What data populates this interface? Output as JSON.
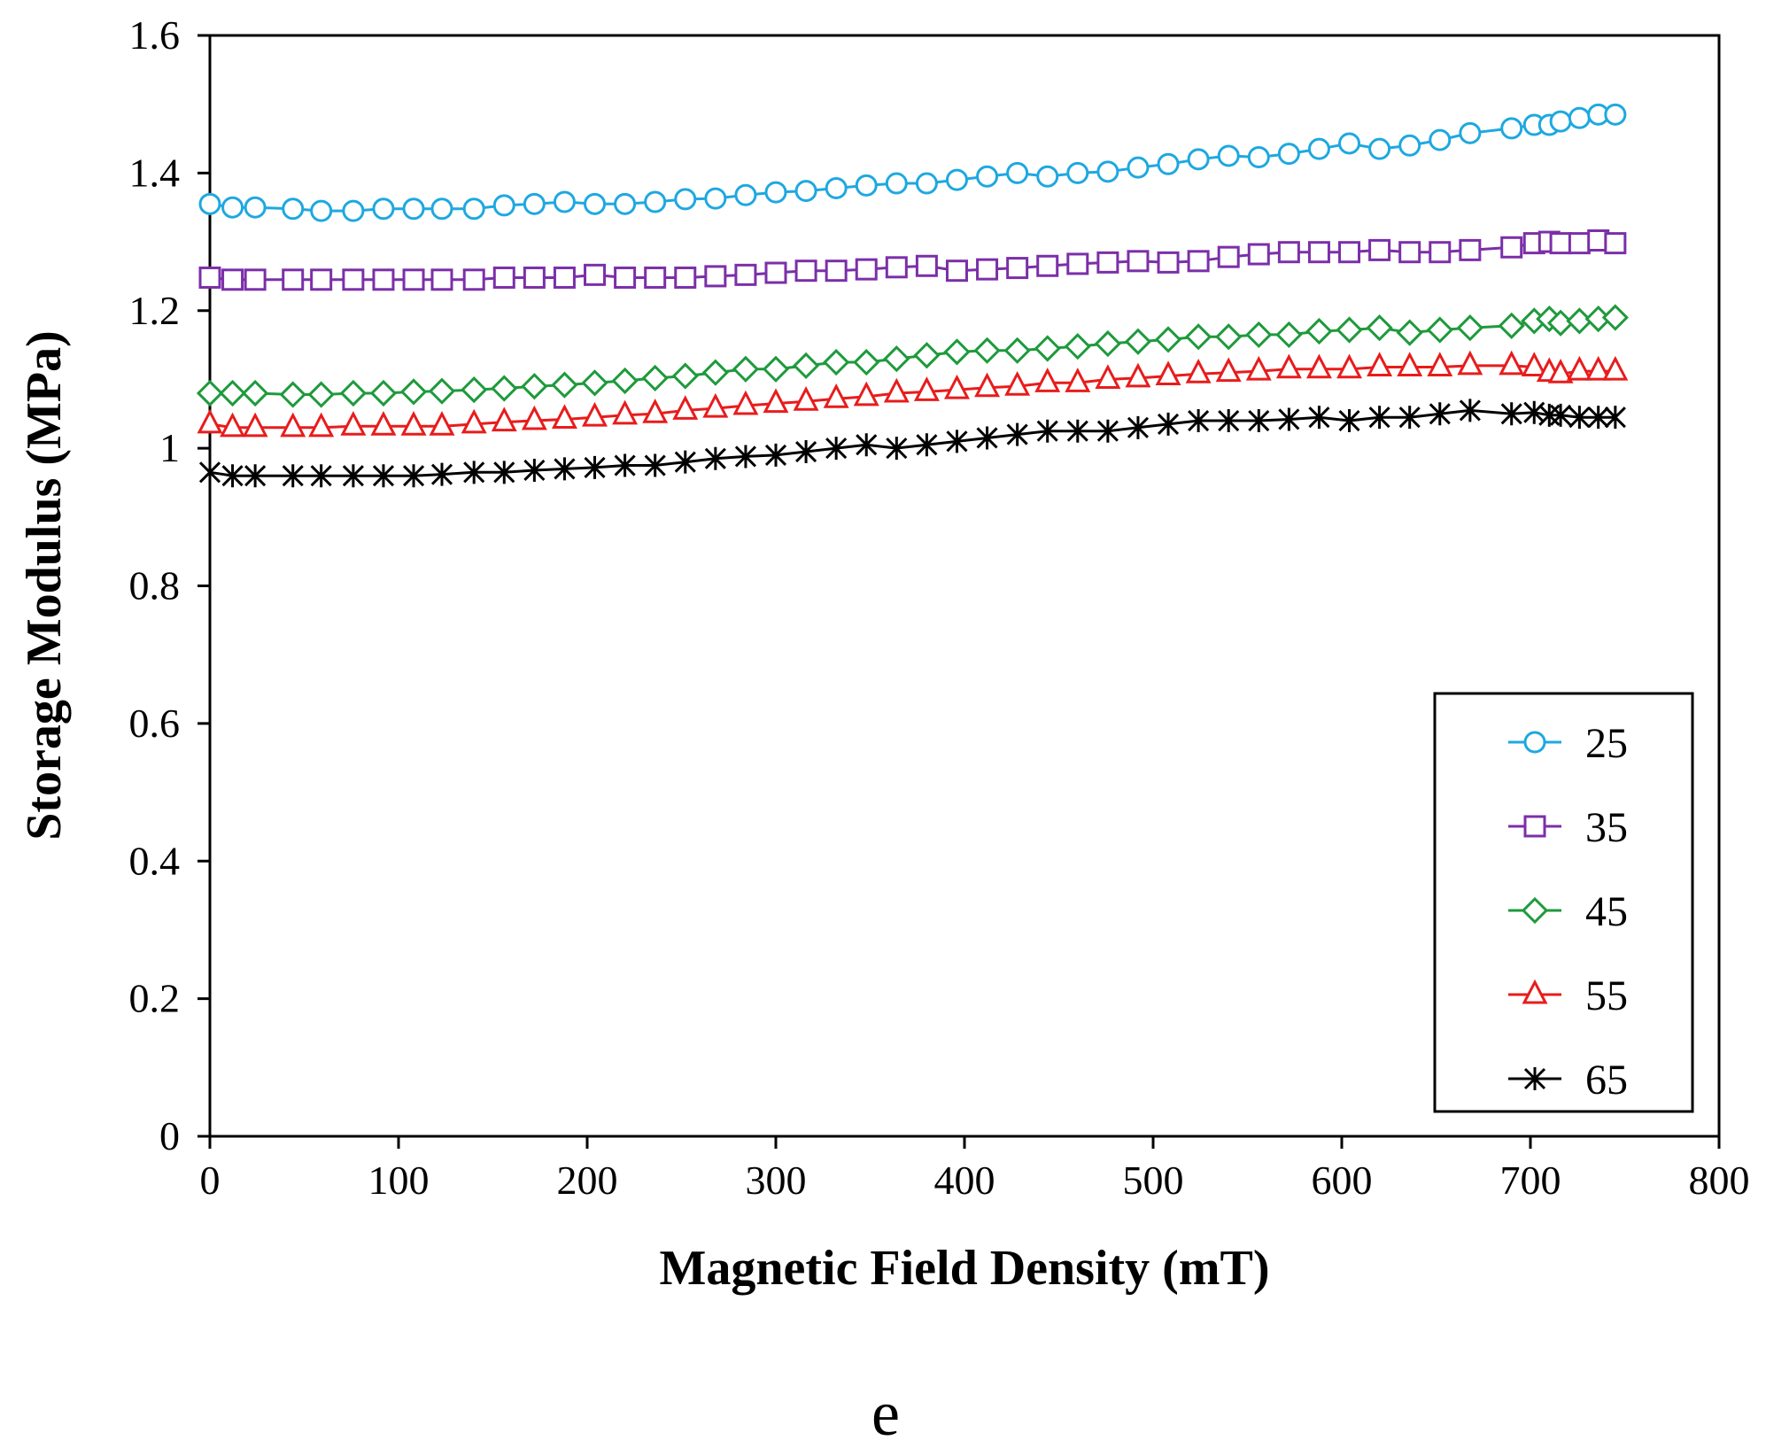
{
  "chart_data": {
    "type": "line",
    "title": "",
    "xlabel": "Magnetic Field Density (mT)",
    "ylabel": "Storage Modulus (MPa)",
    "xlim": [
      0,
      800
    ],
    "ylim": [
      0,
      1.6
    ],
    "xticks": [
      "0",
      "100",
      "200",
      "300",
      "400",
      "500",
      "600",
      "700",
      "800"
    ],
    "yticks": [
      "0",
      "0.2",
      "0.4",
      "0.6",
      "0.8",
      "1",
      "1.2",
      "1.4",
      "1.6"
    ],
    "grid": false,
    "legend_position": "bottom-right",
    "panel_label": "e",
    "x": [
      0,
      12,
      24,
      44,
      59,
      76,
      92,
      108,
      123,
      140,
      156,
      172,
      188,
      204,
      220,
      236,
      252,
      268,
      284,
      300,
      316,
      332,
      348,
      364,
      380,
      396,
      412,
      428,
      444,
      460,
      476,
      492,
      508,
      524,
      540,
      556,
      572,
      588,
      604,
      620,
      636,
      652,
      668,
      690,
      702,
      710,
      716,
      726,
      736,
      745
    ],
    "series": [
      {
        "name": "25",
        "color": "#1ea8e0",
        "marker": "circle",
        "values": [
          1.355,
          1.35,
          1.35,
          1.348,
          1.345,
          1.345,
          1.348,
          1.348,
          1.348,
          1.348,
          1.353,
          1.355,
          1.358,
          1.355,
          1.355,
          1.358,
          1.362,
          1.363,
          1.368,
          1.372,
          1.374,
          1.378,
          1.382,
          1.385,
          1.385,
          1.39,
          1.395,
          1.4,
          1.395,
          1.4,
          1.402,
          1.408,
          1.413,
          1.42,
          1.425,
          1.423,
          1.428,
          1.435,
          1.443,
          1.435,
          1.44,
          1.448,
          1.458,
          1.465,
          1.47,
          1.47,
          1.475,
          1.48,
          1.485,
          1.485
        ]
      },
      {
        "name": "35",
        "color": "#7b2fa8",
        "marker": "square",
        "values": [
          1.248,
          1.245,
          1.245,
          1.245,
          1.245,
          1.245,
          1.245,
          1.245,
          1.245,
          1.245,
          1.248,
          1.248,
          1.248,
          1.252,
          1.248,
          1.248,
          1.248,
          1.25,
          1.252,
          1.255,
          1.258,
          1.258,
          1.26,
          1.263,
          1.265,
          1.258,
          1.26,
          1.262,
          1.265,
          1.268,
          1.27,
          1.272,
          1.27,
          1.272,
          1.278,
          1.282,
          1.285,
          1.285,
          1.285,
          1.288,
          1.285,
          1.285,
          1.288,
          1.292,
          1.298,
          1.3,
          1.298,
          1.298,
          1.302,
          1.298
        ]
      },
      {
        "name": "45",
        "color": "#1e9a3c",
        "marker": "diamond",
        "values": [
          1.08,
          1.08,
          1.08,
          1.078,
          1.078,
          1.08,
          1.08,
          1.082,
          1.083,
          1.085,
          1.087,
          1.09,
          1.092,
          1.095,
          1.098,
          1.102,
          1.105,
          1.11,
          1.115,
          1.115,
          1.12,
          1.125,
          1.125,
          1.13,
          1.135,
          1.14,
          1.142,
          1.142,
          1.145,
          1.148,
          1.152,
          1.155,
          1.158,
          1.162,
          1.162,
          1.165,
          1.165,
          1.17,
          1.172,
          1.175,
          1.168,
          1.172,
          1.175,
          1.178,
          1.185,
          1.188,
          1.182,
          1.185,
          1.188,
          1.19
        ]
      },
      {
        "name": "55",
        "color": "#e81c1c",
        "marker": "triangle",
        "values": [
          1.035,
          1.03,
          1.03,
          1.03,
          1.03,
          1.032,
          1.032,
          1.032,
          1.032,
          1.035,
          1.038,
          1.04,
          1.042,
          1.045,
          1.048,
          1.05,
          1.055,
          1.058,
          1.062,
          1.065,
          1.068,
          1.072,
          1.075,
          1.08,
          1.082,
          1.085,
          1.088,
          1.09,
          1.095,
          1.095,
          1.1,
          1.102,
          1.105,
          1.108,
          1.11,
          1.112,
          1.115,
          1.115,
          1.115,
          1.118,
          1.118,
          1.118,
          1.12,
          1.12,
          1.118,
          1.11,
          1.108,
          1.112,
          1.112,
          1.112
        ]
      },
      {
        "name": "65",
        "color": "#000000",
        "marker": "asterisk",
        "values": [
          0.965,
          0.96,
          0.96,
          0.96,
          0.96,
          0.96,
          0.96,
          0.96,
          0.962,
          0.965,
          0.965,
          0.968,
          0.97,
          0.972,
          0.975,
          0.975,
          0.98,
          0.985,
          0.988,
          0.99,
          0.995,
          1.0,
          1.005,
          1.0,
          1.005,
          1.01,
          1.015,
          1.02,
          1.025,
          1.025,
          1.025,
          1.03,
          1.035,
          1.04,
          1.04,
          1.04,
          1.042,
          1.045,
          1.04,
          1.045,
          1.045,
          1.05,
          1.055,
          1.05,
          1.052,
          1.048,
          1.048,
          1.045,
          1.045,
          1.045
        ]
      }
    ]
  }
}
